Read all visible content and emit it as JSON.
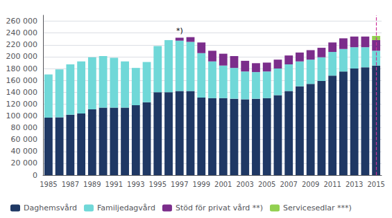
{
  "chart_data": {
    "type": "bar",
    "stacked": true,
    "categories": [
      "1985",
      null,
      "1987",
      null,
      "1989",
      null,
      "1991",
      null,
      "1993",
      null,
      "1995",
      null,
      "1997",
      null,
      "1999",
      null,
      "2001",
      null,
      "2003",
      null,
      "2005",
      null,
      "2007",
      null,
      "2009",
      null,
      "2011",
      null,
      "2013",
      null,
      "2015"
    ],
    "series": [
      {
        "name": "Daghemsvård",
        "color": "#1F3864",
        "values": [
          97000,
          97500,
          102000,
          104000,
          111000,
          114000,
          114000,
          114000,
          118000,
          123000,
          140000,
          140000,
          142000,
          142000,
          131000,
          130000,
          130000,
          129000,
          128000,
          129000,
          130000,
          135000,
          142000,
          150000,
          154000,
          159000,
          168000,
          175000,
          180000,
          182000,
          185000
        ]
      },
      {
        "name": "Familjedagvård",
        "color": "#70D8D8",
        "values": [
          73000,
          81000,
          85000,
          88000,
          88000,
          87000,
          84000,
          78000,
          63000,
          68000,
          78000,
          88000,
          85000,
          83000,
          75000,
          62000,
          55000,
          52000,
          47000,
          45000,
          45000,
          45000,
          45000,
          42000,
          41000,
          40000,
          40000,
          38000,
          36000,
          34000,
          25000
        ]
      },
      {
        "name": "Stöd för privat vård **)",
        "color": "#7B2D8B",
        "values": [
          0,
          0,
          0,
          0,
          0,
          0,
          0,
          0,
          0,
          0,
          0,
          0,
          5000,
          8000,
          18000,
          18000,
          20000,
          20000,
          18000,
          15000,
          15000,
          15000,
          15000,
          15000,
          16000,
          16000,
          16000,
          18000,
          18000,
          18000,
          18000
        ]
      },
      {
        "name": "Servicesedlar ***)",
        "color": "#92D050",
        "values": [
          0,
          0,
          0,
          0,
          0,
          0,
          0,
          0,
          0,
          0,
          0,
          0,
          0,
          0,
          0,
          0,
          0,
          0,
          0,
          0,
          0,
          0,
          0,
          0,
          0,
          0,
          0,
          0,
          0,
          0,
          7000
        ]
      }
    ],
    "ylim": [
      0,
      270000
    ],
    "yticks": [
      0,
      {
        "value": 20000,
        "label": "20 000"
      },
      {
        "value": 40000,
        "label": "40 000"
      },
      {
        "value": 60000,
        "label": "60 000"
      },
      {
        "value": 80000,
        "label": "80 000"
      },
      {
        "value": 100000,
        "label": "100 000"
      },
      {
        "value": 120000,
        "label": "120 000"
      },
      {
        "value": 140000,
        "label": "140 000"
      },
      {
        "value": 160000,
        "label": "160 000"
      },
      {
        "value": 180000,
        "label": "180 000"
      },
      {
        "value": 200000,
        "label": "200 000"
      },
      {
        "value": 220000,
        "label": "220 000"
      },
      {
        "value": 240000,
        "label": "240 000"
      },
      {
        "value": 260000,
        "label": "260 000"
      }
    ],
    "grid": true,
    "legend": "bottom",
    "annotations": [
      {
        "text": "*)",
        "x": "1997",
        "y": 232000
      }
    ],
    "reference_lines": [
      {
        "x": "2015",
        "color": "#CC3399",
        "line_style": "dashed"
      }
    ]
  }
}
